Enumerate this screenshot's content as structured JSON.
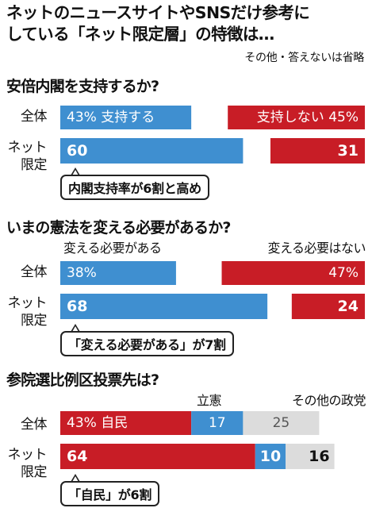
{
  "header": {
    "title_line1": "ネットのニュースサイトやSNSだけ参考に",
    "title_line2": "している「ネット限定層」の特徴は…",
    "note": "その他・答えないは省略"
  },
  "colors": {
    "blue": "#3f8fd0",
    "red": "#c81d26",
    "gray": "#dcdcdc"
  },
  "chart_data": [
    {
      "type": "bar",
      "title": "安倍内閣を支持するか?",
      "categories": [
        "全体",
        "ネット限定"
      ],
      "category_labels": [
        [
          "全体"
        ],
        [
          "ネット",
          "限定"
        ]
      ],
      "series": [
        {
          "name": "支持する",
          "values": [
            43,
            60
          ],
          "color": "#3f8fd0"
        },
        {
          "name": "支持しない",
          "values": [
            45,
            31
          ],
          "color": "#c81d26"
        }
      ],
      "bar_labels": [
        [
          "43%  支持する",
          "60"
        ],
        [
          "支持しない  45%",
          "31"
        ]
      ],
      "annotation": "内閣支持率が6割と高め"
    },
    {
      "type": "bar",
      "title": "いまの憲法を変える必要があるか?",
      "categories": [
        "全体",
        "ネット限定"
      ],
      "category_labels": [
        [
          "全体"
        ],
        [
          "ネット",
          "限定"
        ]
      ],
      "series": [
        {
          "name": "変える必要がある",
          "values": [
            38,
            68
          ],
          "color": "#3f8fd0"
        },
        {
          "name": "変える必要はない",
          "values": [
            47,
            24
          ],
          "color": "#c81d26"
        }
      ],
      "bar_labels": [
        [
          "38%",
          "68"
        ],
        [
          "47%",
          "24"
        ]
      ],
      "annotation": "「変える必要がある」が7割"
    },
    {
      "type": "bar",
      "title": "参院選比例区投票先は?",
      "categories": [
        "全体",
        "ネット限定"
      ],
      "category_labels": [
        [
          "全体"
        ],
        [
          "ネット",
          "限定"
        ]
      ],
      "series": [
        {
          "name": "自民",
          "values": [
            43,
            64
          ],
          "color": "#c81d26"
        },
        {
          "name": "立憲",
          "values": [
            17,
            10
          ],
          "color": "#3f8fd0"
        },
        {
          "name": "その他の政党",
          "values": [
            25,
            16
          ],
          "color": "#dcdcdc"
        }
      ],
      "bar_labels": [
        [
          "43%  自民",
          "64"
        ],
        [
          "17",
          "10"
        ],
        [
          "25",
          "16"
        ]
      ],
      "annotation": "「自民」が6割"
    }
  ]
}
